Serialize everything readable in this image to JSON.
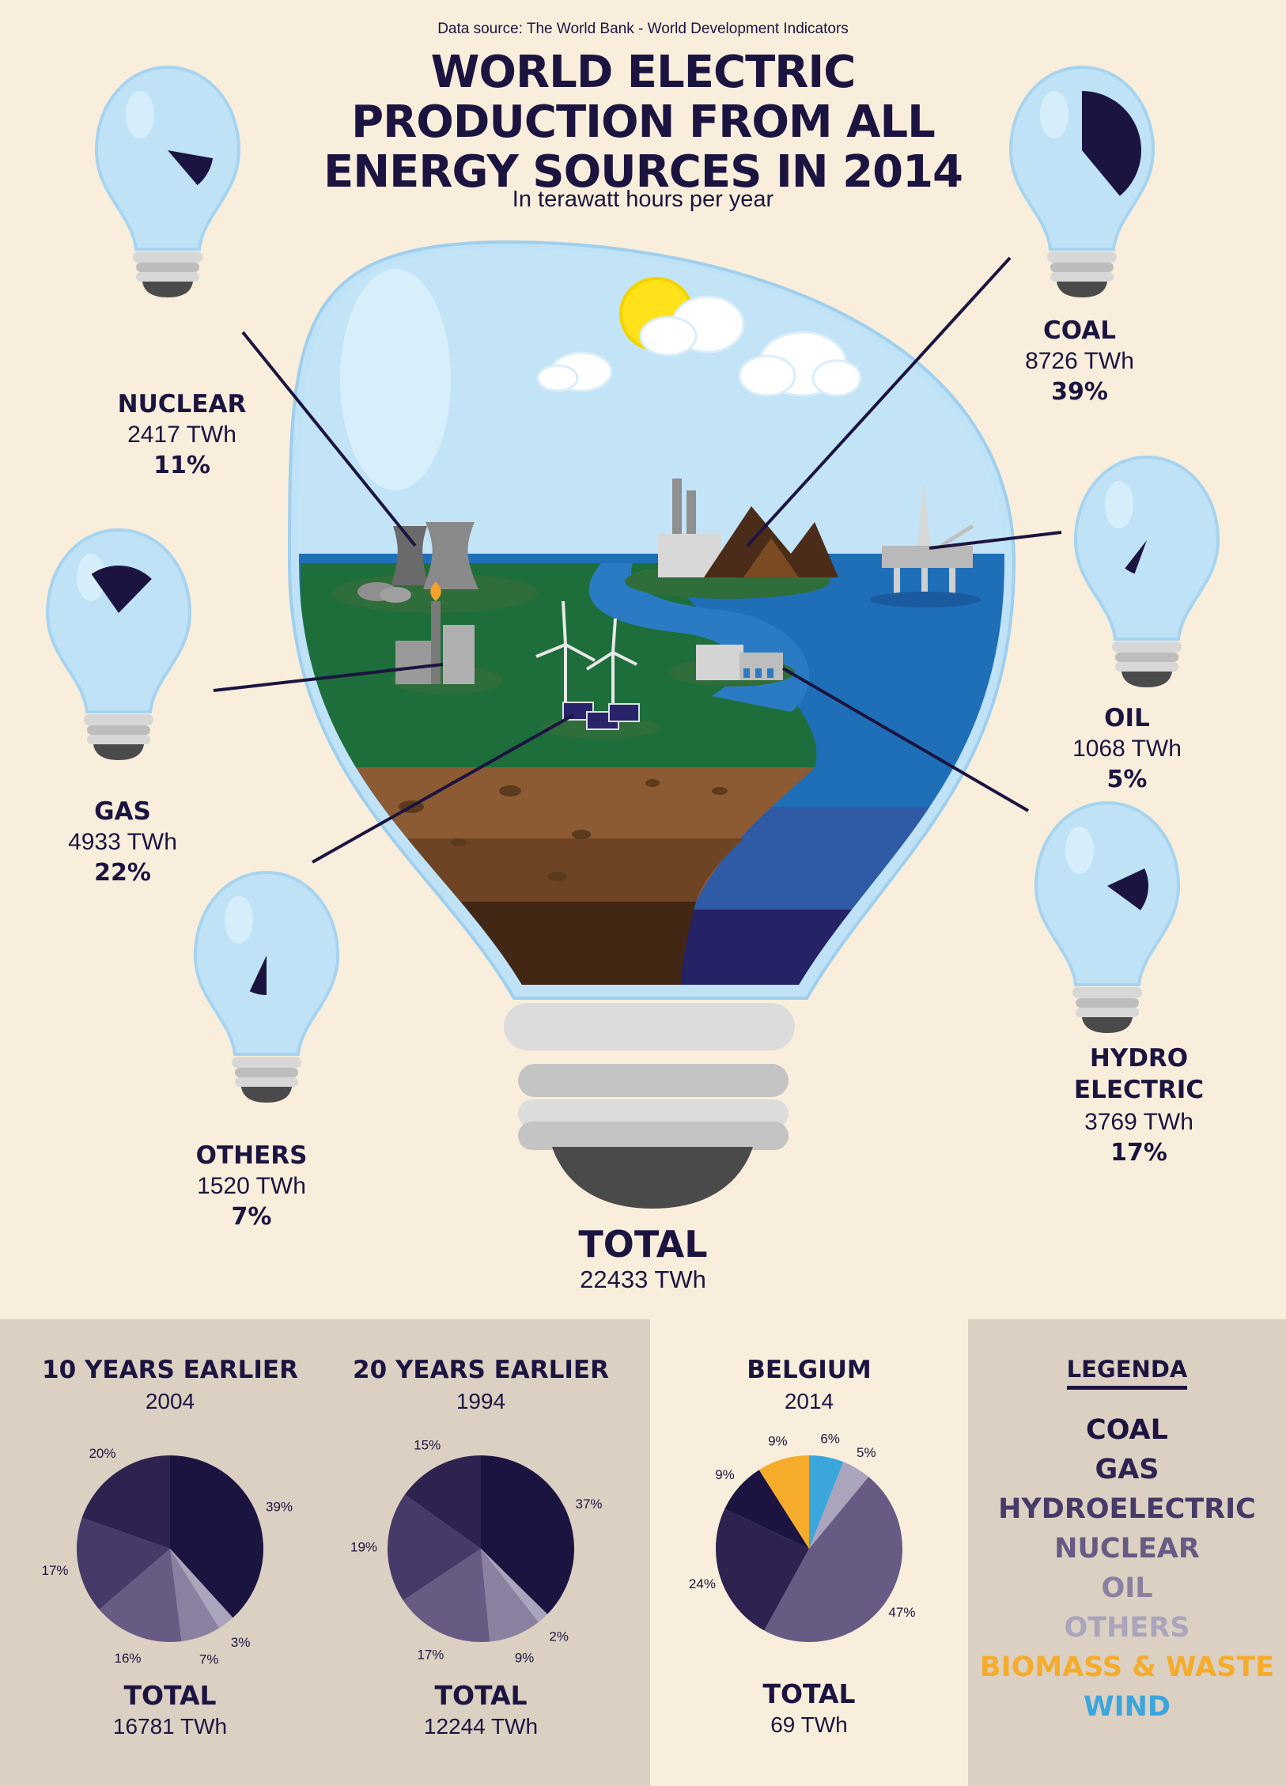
{
  "source": "Data source: The World Bank - World Development Indicators",
  "title_lines": [
    "WORLD ELECTRIC",
    "PRODUCTION FROM ALL",
    "ENERGY SOURCES IN 2014"
  ],
  "subtitle": "In terawatt hours per year",
  "total": {
    "label": "TOTAL",
    "value": "22433 TWh"
  },
  "chart_data": [
    {
      "type": "pie",
      "title": "WORLD ELECTRIC PRODUCTION FROM ALL ENERGY SOURCES IN 2014",
      "unit": "TWh",
      "total": 22433,
      "slices": [
        {
          "name": "COAL",
          "value": 8726,
          "value_label": "8726 TWh",
          "percent": 39,
          "percent_label": "39%"
        },
        {
          "name": "GAS",
          "value": 4933,
          "value_label": "4933 TWh",
          "percent": 22,
          "percent_label": "22%"
        },
        {
          "name": "HYDRO ELECTRIC",
          "value": 3769,
          "value_label": "3769 TWh",
          "percent": 17,
          "percent_label": "17%"
        },
        {
          "name": "NUCLEAR",
          "value": 2417,
          "value_label": "2417 TWh",
          "percent": 11,
          "percent_label": "11%"
        },
        {
          "name": "OIL",
          "value": 1068,
          "value_label": "1068 TWh",
          "percent": 5,
          "percent_label": "5%"
        },
        {
          "name": "OTHERS",
          "value": 1520,
          "value_label": "1520 TWh",
          "percent": 7,
          "percent_label": "7%"
        }
      ]
    },
    {
      "type": "pie",
      "title": "10 YEARS EARLIER",
      "subtitle": "2004",
      "total_label": "TOTAL",
      "total_value": "16781 TWh",
      "slices": [
        {
          "name": "COAL",
          "value": 39,
          "label": "39%"
        },
        {
          "name": "OTHERS",
          "value": 3,
          "label": "3%"
        },
        {
          "name": "OIL",
          "value": 7,
          "label": "7%"
        },
        {
          "name": "NUCLEAR",
          "value": 16,
          "label": "16%"
        },
        {
          "name": "HYDROELECTRIC",
          "value": 17,
          "label": "17%"
        },
        {
          "name": "GAS",
          "value": 20,
          "label": "20%"
        }
      ]
    },
    {
      "type": "pie",
      "title": "20 YEARS EARLIER",
      "subtitle": "1994",
      "total_label": "TOTAL",
      "total_value": "12244 TWh",
      "slices": [
        {
          "name": "COAL",
          "value": 37,
          "label": "37%"
        },
        {
          "name": "OTHERS",
          "value": 2,
          "label": "2%"
        },
        {
          "name": "OIL",
          "value": 9,
          "label": "9%"
        },
        {
          "name": "NUCLEAR",
          "value": 17,
          "label": "17%"
        },
        {
          "name": "HYDROELECTRIC",
          "value": 19,
          "label": "19%"
        },
        {
          "name": "GAS",
          "value": 15,
          "label": "15%"
        }
      ]
    },
    {
      "type": "pie",
      "title": "BELGIUM",
      "subtitle": "2014",
      "total_label": "TOTAL",
      "total_value": "69 TWh",
      "slices": [
        {
          "name": "WIND",
          "value": 6,
          "label": "6%"
        },
        {
          "name": "OTHERS",
          "value": 5,
          "label": "5%"
        },
        {
          "name": "NUCLEAR",
          "value": 47,
          "label": "47%"
        },
        {
          "name": "GAS",
          "value": 24,
          "label": "24%"
        },
        {
          "name": "COAL",
          "value": 9,
          "label": "9%"
        },
        {
          "name": "BIOMASS & WASTE",
          "value": 9,
          "label": "9%"
        }
      ]
    }
  ],
  "legend": {
    "title": "LEGENDA",
    "items": [
      {
        "name": "COAL",
        "color": "#1c1440"
      },
      {
        "name": "GAS",
        "color": "#2d2250"
      },
      {
        "name": "HYDROELECTRIC",
        "color": "#463a68"
      },
      {
        "name": "NUCLEAR",
        "color": "#675a83"
      },
      {
        "name": "OIL",
        "color": "#8a80a0"
      },
      {
        "name": "OTHERS",
        "color": "#aaa4bc"
      },
      {
        "name": "BIOMASS & WASTE",
        "color": "#f5ac2b"
      },
      {
        "name": "WIND",
        "color": "#3ba6dc"
      }
    ]
  }
}
